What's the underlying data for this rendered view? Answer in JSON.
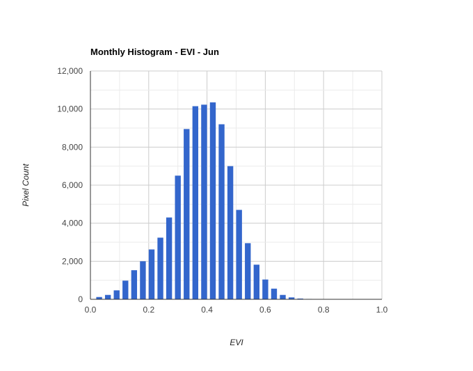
{
  "chart_data": {
    "type": "bar",
    "title": "Monthly Histogram - EVI - Jun",
    "xlabel": "EVI",
    "ylabel": "Pixel Count",
    "xlim": [
      0,
      1
    ],
    "ylim": [
      0,
      12000
    ],
    "x_ticks": [
      "0.0",
      "0.2",
      "0.4",
      "0.6",
      "0.8",
      "1.0"
    ],
    "y_ticks": [
      "0",
      "2,000",
      "4,000",
      "6,000",
      "8,000",
      "10,000",
      "12,000"
    ],
    "grid": true,
    "bar_width": 0.02,
    "bar_color": "#3366cc",
    "x": [
      0.03,
      0.06,
      0.09,
      0.12,
      0.15,
      0.18,
      0.21,
      0.24,
      0.27,
      0.3,
      0.33,
      0.36,
      0.39,
      0.42,
      0.45,
      0.48,
      0.51,
      0.54,
      0.57,
      0.6,
      0.63,
      0.66,
      0.69,
      0.72,
      0.75,
      0.78,
      0.81,
      0.84,
      0.87,
      0.9,
      0.93,
      0.96,
      0.99
    ],
    "values": [
      120,
      230,
      470,
      980,
      1530,
      2000,
      2620,
      3240,
      4300,
      6500,
      8950,
      10150,
      10230,
      10350,
      9200,
      7000,
      4700,
      2950,
      1820,
      1040,
      560,
      230,
      100,
      40,
      20,
      10,
      5,
      3,
      2,
      1,
      1,
      0,
      0
    ]
  }
}
